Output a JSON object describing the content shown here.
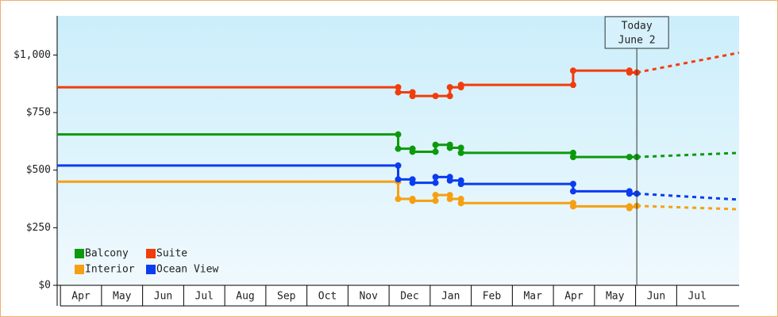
{
  "chart_data": {
    "type": "line",
    "categories": [
      "Apr",
      "May",
      "Jun",
      "Jul",
      "Aug",
      "Sep",
      "Oct",
      "Nov",
      "Dec",
      "Jan",
      "Feb",
      "Mar",
      "Apr",
      "May",
      "Jun",
      "Jul"
    ],
    "xlim": [
      -0.08,
      16.52
    ],
    "ylim": [
      0,
      1170
    ],
    "yticks": [
      0,
      {
        "value": 250,
        "label": "$250"
      },
      {
        "value": 500,
        "label": "$500"
      },
      {
        "value": 750,
        "label": "$750"
      },
      {
        "value": 1000,
        "label": "$1,000"
      }
    ],
    "yticks_zero_label": "$0",
    "legend": "lower left",
    "today": {
      "x": 14.03,
      "labels": [
        "Today",
        "June 2"
      ]
    },
    "series": [
      {
        "name": "Balcony",
        "color": "#0c9a0c",
        "x": [
          -0.08,
          8.22,
          8.22,
          8.57,
          8.57,
          9.13,
          9.13,
          9.48,
          9.48,
          9.75,
          9.75,
          12.48,
          12.48,
          13.85,
          14.03
        ],
        "values": [
          655,
          655,
          593,
          593,
          580,
          580,
          610,
          610,
          597,
          597,
          575,
          575,
          557,
          557,
          557
        ],
        "forecast_x": [
          14.03,
          16.52
        ],
        "forecast_values": [
          557,
          575
        ]
      },
      {
        "name": "Suite",
        "color": "#f23c0c",
        "x": [
          8.22,
          8.22,
          8.57,
          8.57,
          9.13,
          9.48,
          9.48,
          9.75,
          9.75,
          12.48,
          12.48,
          13.85,
          13.85,
          14.03
        ],
        "values": [
          860,
          838,
          838,
          822,
          822,
          822,
          860,
          860,
          870,
          870,
          932,
          932,
          924,
          924
        ],
        "start_x": -0.08,
        "start_value": 860,
        "forecast_x": [
          14.03,
          16.52
        ],
        "forecast_values": [
          924,
          1010
        ]
      },
      {
        "name": "Interior",
        "color": "#f5a012",
        "x": [
          -0.08,
          8.22,
          8.22,
          8.57,
          8.57,
          9.13,
          9.13,
          9.48,
          9.48,
          9.75,
          9.75,
          12.48,
          12.48,
          13.85,
          13.85,
          14.03
        ],
        "values": [
          450,
          450,
          375,
          375,
          367,
          367,
          392,
          392,
          375,
          375,
          357,
          357,
          343,
          343,
          335,
          345
        ],
        "forecast_x": [
          14.03,
          16.52
        ],
        "forecast_values": [
          345,
          330
        ]
      },
      {
        "name": "Ocean View",
        "color": "#0a3cf0",
        "x": [
          -0.08,
          8.22,
          8.22,
          8.57,
          8.57,
          9.13,
          9.13,
          9.48,
          9.48,
          9.75,
          9.75,
          12.48,
          12.48,
          13.85,
          13.85,
          14.03
        ],
        "values": [
          520,
          520,
          460,
          460,
          445,
          445,
          470,
          470,
          455,
          455,
          440,
          440,
          408,
          408,
          398,
          398
        ],
        "forecast_x": [
          14.03,
          16.52
        ],
        "forecast_values": [
          398,
          372
        ]
      }
    ]
  }
}
